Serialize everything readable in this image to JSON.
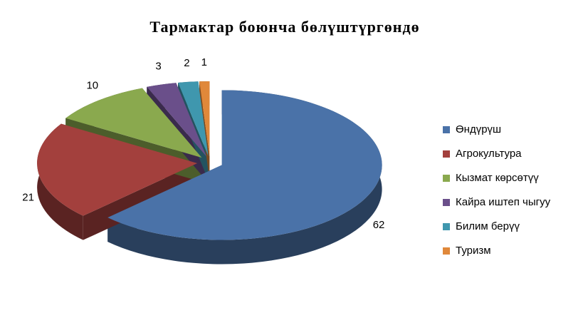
{
  "chart_data": {
    "type": "pie",
    "title": "Тармактар боюнча бөлүштүргөндө",
    "categories": [
      "Өндүрүш",
      "Агрокультура",
      "Кызмат көрсөтүү",
      "Кайра иштеп чыгуу",
      "Билим берүү",
      "Туризм"
    ],
    "values": [
      62,
      21,
      10,
      3,
      2,
      1
    ],
    "colors": [
      "#4a72a8",
      "#a3403d",
      "#8aa94e",
      "#6a4f8a",
      "#3f97ae",
      "#e0883a"
    ],
    "legend": "right"
  }
}
